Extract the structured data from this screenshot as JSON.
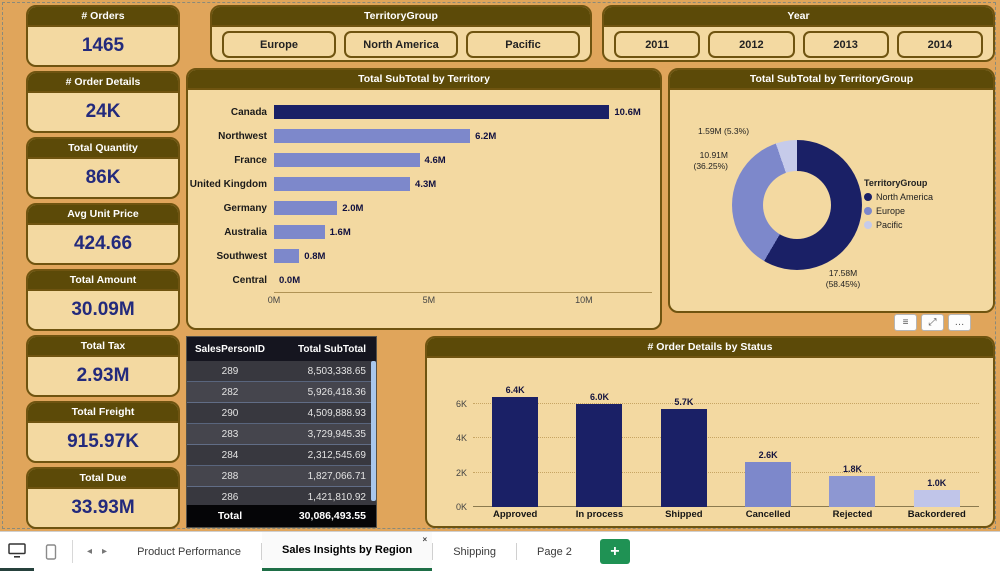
{
  "colors": {
    "background": "#e0a55b",
    "card_bg": "#f3d9a1",
    "card_border": "#6f5410",
    "header_bg": "#5c4a08",
    "kpi_value": "#232a7c",
    "bar_dark": "#1a2066",
    "bar_medium": "#7d88cb",
    "bar_light": "#c0c5e9",
    "add_page_green": "#1f9254",
    "active_tab_underline": "#1e6e46",
    "table_scrollbar": "#a9c7ec"
  },
  "kpis": [
    {
      "label": "# Orders",
      "value": "1465"
    },
    {
      "label": "# Order Details",
      "value": "24K"
    },
    {
      "label": "Total Quantity",
      "value": "86K"
    },
    {
      "label": "Avg Unit Price",
      "value": "424.66"
    },
    {
      "label": "Total Amount",
      "value": "30.09M"
    },
    {
      "label": "Total Tax",
      "value": "2.93M"
    },
    {
      "label": "Total Freight",
      "value": "915.97K"
    },
    {
      "label": "Total Due",
      "value": "33.93M"
    }
  ],
  "slicers": {
    "territory_group": {
      "title": "TerritoryGroup",
      "options": [
        "Europe",
        "North America",
        "Pacific"
      ]
    },
    "year": {
      "title": "Year",
      "options": [
        "2011",
        "2012",
        "2013",
        "2014"
      ]
    }
  },
  "chart_data": [
    {
      "type": "bar",
      "orientation": "horizontal",
      "title": "Total SubTotal by Territory",
      "categories": [
        "Canada",
        "Northwest",
        "France",
        "United Kingdom",
        "Germany",
        "Australia",
        "Southwest",
        "Central"
      ],
      "values": [
        10.6,
        6.2,
        4.6,
        4.3,
        2.0,
        1.6,
        0.8,
        0.0
      ],
      "labels": [
        "10.6M",
        "6.2M",
        "4.6M",
        "4.3M",
        "2.0M",
        "1.6M",
        "0.8M",
        "0.0M"
      ],
      "colors": [
        "#1a2066",
        "#7d88cb",
        "#7d88cb",
        "#7d88cb",
        "#7d88cb",
        "#7d88cb",
        "#7d88cb",
        "#7d88cb"
      ],
      "x_ticks": [
        {
          "v": 0,
          "label": "0M"
        },
        {
          "v": 5,
          "label": "5M"
        },
        {
          "v": 10,
          "label": "10M"
        }
      ],
      "xlim": [
        0,
        12.2
      ],
      "grid": false,
      "legend": "none"
    },
    {
      "type": "pie",
      "title": "Total SubTotal by TerritoryGroup",
      "legend_title": "TerritoryGroup",
      "legend_position": "right",
      "slices": [
        {
          "name": "North America",
          "value": 17.58,
          "pct": 58.45,
          "color": "#1a2066",
          "callout_lines": [
            "17.58M",
            "(58.45%)"
          ]
        },
        {
          "name": "Europe",
          "value": 10.91,
          "pct": 36.25,
          "color": "#7d88cb",
          "callout_lines": [
            "10.91M",
            "(36.25%)"
          ]
        },
        {
          "name": "Pacific",
          "value": 1.59,
          "pct": 5.3,
          "color": "#c6cbea",
          "callout_lines": [
            "1.59M (5.3%)"
          ]
        }
      ]
    },
    {
      "type": "bar",
      "orientation": "vertical",
      "title": "# Order Details by Status",
      "categories": [
        "Approved",
        "In process",
        "Shipped",
        "Cancelled",
        "Rejected",
        "Backordered"
      ],
      "values": [
        6.4,
        6.0,
        5.7,
        2.6,
        1.8,
        1.0
      ],
      "labels": [
        "6.4K",
        "6.0K",
        "5.7K",
        "2.6K",
        "1.8K",
        "1.0K"
      ],
      "colors": [
        "#1a2066",
        "#1a2066",
        "#1a2066",
        "#7d88cb",
        "#8d97d2",
        "#c0c5e9"
      ],
      "y_ticks": [
        {
          "v": 0,
          "label": "0K"
        },
        {
          "v": 2,
          "label": "2K"
        },
        {
          "v": 4,
          "label": "4K"
        },
        {
          "v": 6,
          "label": "6K"
        }
      ],
      "ylim": [
        0,
        7
      ],
      "grid": true,
      "legend": "none"
    }
  ],
  "table": {
    "columns": [
      "SalesPersonID",
      "Total SubTotal"
    ],
    "rows": [
      [
        "289",
        "8,503,338.65"
      ],
      [
        "282",
        "5,926,418.36"
      ],
      [
        "290",
        "4,509,888.93"
      ],
      [
        "283",
        "3,729,945.35"
      ],
      [
        "284",
        "2,312,545.69"
      ],
      [
        "288",
        "1,827,066.71"
      ],
      [
        "286",
        "1,421,810.92"
      ]
    ],
    "total_label": "Total",
    "total_value": "30,086,493.55"
  },
  "visual_tools": [
    {
      "name": "filter-list-icon",
      "glyph": "≡"
    },
    {
      "name": "focus-mode-icon",
      "glyph": "⤢"
    },
    {
      "name": "more-options-icon",
      "glyph": "…"
    }
  ],
  "footer": {
    "view_icons": [
      {
        "name": "desktop-view-icon"
      },
      {
        "name": "mobile-view-icon"
      }
    ],
    "nav_prev": "◂",
    "nav_next": "▸",
    "tabs": [
      {
        "label": "Product Performance",
        "active": false
      },
      {
        "label": "Sales Insights by Region",
        "active": true
      },
      {
        "label": "Shipping",
        "active": false
      },
      {
        "label": "Page 2",
        "active": false
      }
    ],
    "close_glyph": "×",
    "add_page_label": "+"
  }
}
